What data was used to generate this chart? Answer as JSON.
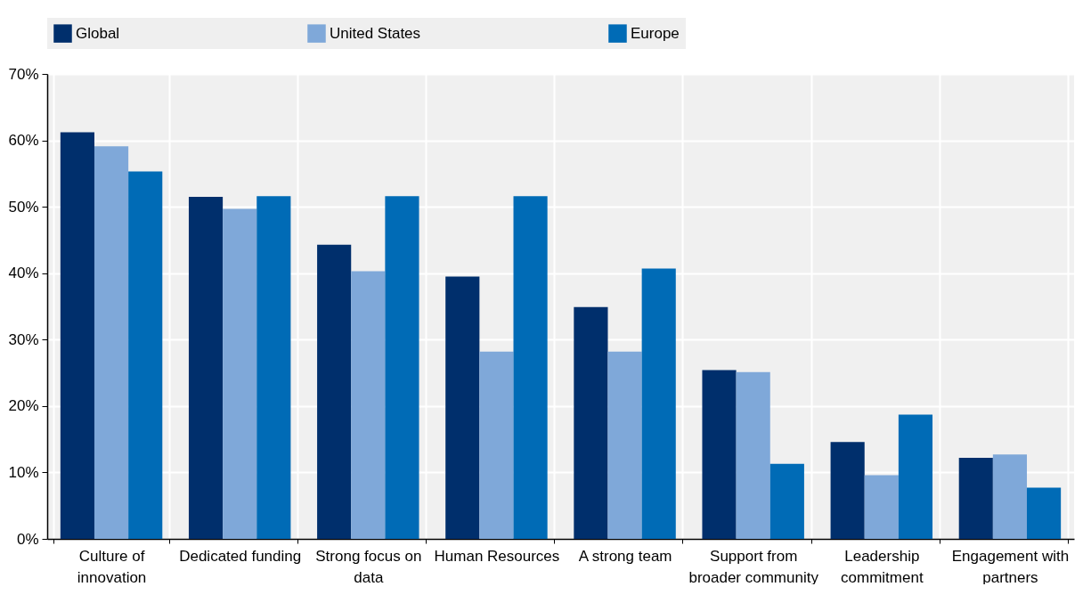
{
  "chart_data": {
    "type": "bar",
    "categories": [
      "Culture of innovation",
      "Dedicated funding",
      "Strong focus on data",
      "Human Resources",
      "A strong team",
      "Support from broader community",
      "Leadership commitment",
      "Engagement with partners"
    ],
    "series": [
      {
        "name": "Global",
        "color": "#002f6c",
        "values": [
          61.2,
          51.5,
          44.3,
          39.5,
          34.9,
          25.4,
          14.6,
          12.2
        ]
      },
      {
        "name": "United States",
        "color": "#7fa8d9",
        "values": [
          59.1,
          49.7,
          40.3,
          28.2,
          28.2,
          25.1,
          9.6,
          12.7
        ]
      },
      {
        "name": "Europe",
        "color": "#006bb6",
        "values": [
          55.3,
          51.6,
          51.6,
          51.6,
          40.7,
          11.3,
          18.7,
          7.7
        ]
      }
    ],
    "ylim": [
      0,
      70
    ],
    "yticks": [
      {
        "value": 0,
        "label": "0%"
      },
      {
        "value": 10,
        "label": "10%"
      },
      {
        "value": 20,
        "label": "20%"
      },
      {
        "value": 30,
        "label": "30%"
      },
      {
        "value": 40,
        "label": "40%"
      },
      {
        "value": 50,
        "label": "50%"
      },
      {
        "value": 60,
        "label": "60%"
      },
      {
        "value": 70,
        "label": "70%"
      }
    ],
    "grid": true,
    "legend": "top"
  }
}
